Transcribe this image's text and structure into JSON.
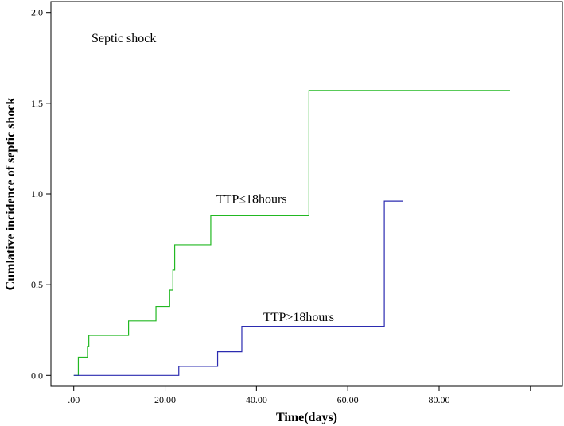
{
  "chart_data": {
    "type": "line",
    "title": "Septic shock",
    "xlabel": "Time(days)",
    "ylabel": "Cumlative incidence of septic shock",
    "xlim": [
      -5,
      107
    ],
    "ylim": [
      -0.06,
      2.06
    ],
    "x_ticks": [
      {
        "value": 0,
        "label": ".00"
      },
      {
        "value": 20,
        "label": "20.00"
      },
      {
        "value": 40,
        "label": "40.00"
      },
      {
        "value": 60,
        "label": "60.00"
      },
      {
        "value": 80,
        "label": "80.00"
      },
      {
        "value": 100,
        "label": ""
      }
    ],
    "y_ticks": [
      {
        "value": 0,
        "label": "0.0"
      },
      {
        "value": 0.5,
        "label": "0.5"
      },
      {
        "value": 1.0,
        "label": "1.0"
      },
      {
        "value": 1.5,
        "label": "1.5"
      },
      {
        "value": 2.0,
        "label": "2.0"
      }
    ],
    "grid": false,
    "series": [
      {
        "name": "TTP≤18hours",
        "color": "#22b822",
        "step": true,
        "points": [
          [
            0,
            0
          ],
          [
            1,
            0.1
          ],
          [
            3,
            0.16
          ],
          [
            3.3,
            0.22
          ],
          [
            12,
            0.3
          ],
          [
            18,
            0.38
          ],
          [
            21,
            0.47
          ],
          [
            21.7,
            0.58
          ],
          [
            22.1,
            0.72
          ],
          [
            30,
            0.88
          ],
          [
            51.5,
            1.57
          ],
          [
            95.5,
            1.57
          ]
        ]
      },
      {
        "name": "TTP>18hours",
        "color": "#2b2bb0",
        "step": true,
        "points": [
          [
            0,
            0
          ],
          [
            23,
            0.05
          ],
          [
            31.5,
            0.13
          ],
          [
            36.8,
            0.27
          ],
          [
            68,
            0.96
          ],
          [
            72,
            0.96
          ]
        ]
      }
    ],
    "annotations": [
      {
        "text": "TTP≤18hours",
        "x": 31.2,
        "y": 0.95
      },
      {
        "text": "TTP>18hours",
        "x": 41.5,
        "y": 0.3
      }
    ]
  }
}
